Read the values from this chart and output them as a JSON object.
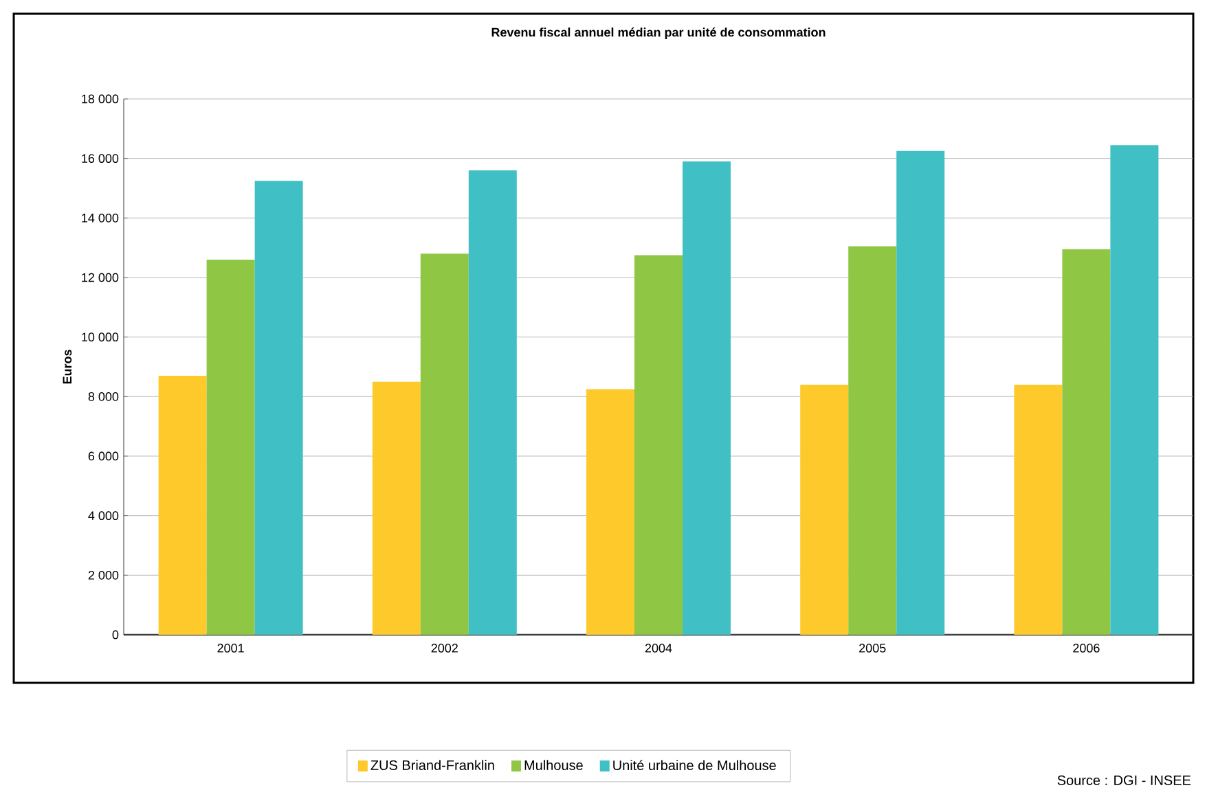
{
  "chart_data": {
    "type": "bar",
    "title": "Revenu fiscal annuel médian par unité de consommation",
    "ylabel": "Euros",
    "categories": [
      "2001",
      "2002",
      "2004",
      "2005",
      "2006"
    ],
    "series": [
      {
        "name": "ZUS Briand-Franklin",
        "color": "#fdc92b",
        "values": [
          8700,
          8500,
          8250,
          8400,
          8400
        ]
      },
      {
        "name": "Mulhouse",
        "color": "#8fc745",
        "values": [
          12600,
          12800,
          12750,
          13050,
          12950
        ]
      },
      {
        "name": "Unité urbaine de Mulhouse",
        "color": "#40c0c4",
        "values": [
          15250,
          15600,
          15900,
          16250,
          16450
        ]
      }
    ],
    "ylim": [
      0,
      18000
    ],
    "yticks": [
      0,
      {
        "value": 2000,
        "label": "2 000"
      },
      {
        "value": 4000,
        "label": "4 000"
      },
      {
        "value": 6000,
        "label": "6 000"
      },
      {
        "value": 8000,
        "label": "8 000"
      },
      {
        "value": 10000,
        "label": "10 000"
      },
      {
        "value": 12000,
        "label": "12 000"
      },
      {
        "value": 14000,
        "label": "14 000"
      },
      {
        "value": 16000,
        "label": "16 000"
      },
      {
        "value": 18000,
        "label": "18 000"
      }
    ],
    "grid": "y",
    "legend": "bottom",
    "annotations": [
      "Source : DGI - INSEE"
    ]
  }
}
